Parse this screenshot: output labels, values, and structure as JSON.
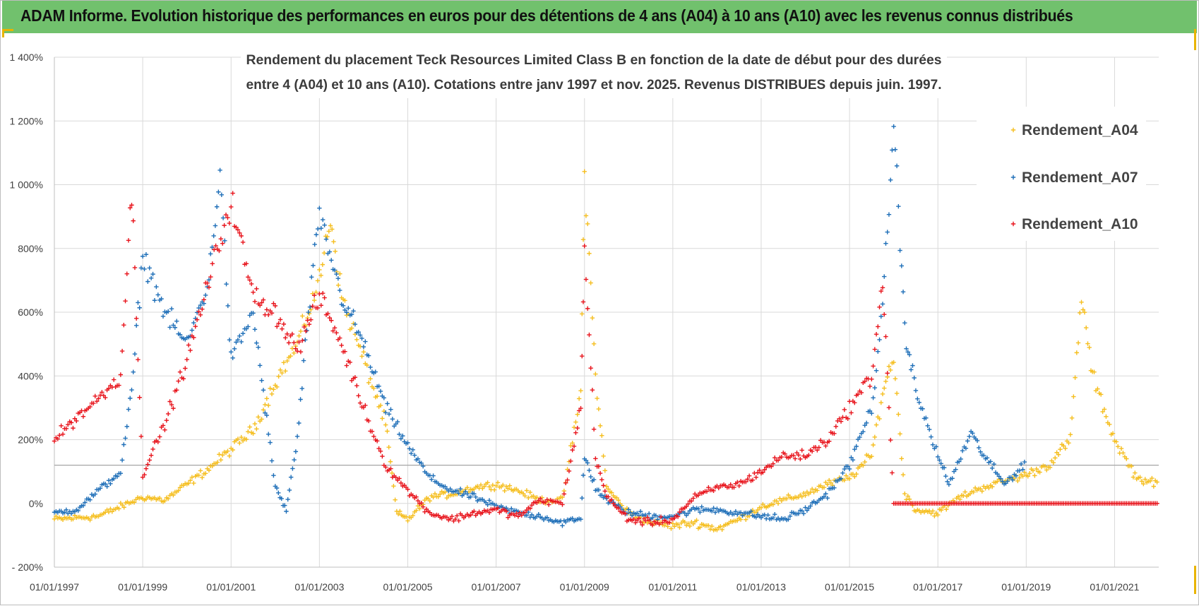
{
  "header": {
    "title": "ADAM Informe. Evolution historique des performances en euros pour des détentions de 4 ans (A04) à 10 ans (A10) avec les revenus connus distribués"
  },
  "colors": {
    "header_bg": "#71c16d",
    "corner": "#e9b400",
    "A04": "#f5be1e",
    "A07": "#1f6fb8",
    "A10": "#e8141c"
  },
  "chart_data": {
    "type": "scatter",
    "title_lines": [
      "Rendement du placement Teck Resources Limited Class B en fonction de la date de début pour des durées",
      "entre 4 (A04) et 10 ans (A10).  Cotations entre janv 1997 et nov. 2025. Revenus DISTRIBUES depuis juin. 1997."
    ],
    "x_axis": {
      "type": "date",
      "range": [
        "1997-01-01",
        "2022-01-01"
      ],
      "tick_labels": [
        "01/01/1997",
        "01/01/1999",
        "01/01/2001",
        "01/01/2003",
        "01/01/2005",
        "01/01/2007",
        "01/01/2009",
        "01/01/2011",
        "01/01/2013",
        "01/01/2015",
        "01/01/2017",
        "01/01/2019",
        "01/01/2021"
      ]
    },
    "y_axis": {
      "range": [
        -200,
        1400
      ],
      "unit": "%",
      "tick_labels": [
        "- 200%",
        "0%",
        "200%",
        "400%",
        "600%",
        "800%",
        "1 000%",
        "1 200%",
        "1 400%"
      ]
    },
    "grid": true,
    "legend_position": "top-right",
    "series": [
      {
        "name": "Rendement_A04",
        "points": [
          [
            "1997-01-01",
            -50
          ],
          [
            "1997-07-01",
            -45
          ],
          [
            "1998-01-01",
            -40
          ],
          [
            "1998-07-01",
            -10
          ],
          [
            "1999-01-01",
            20
          ],
          [
            "1999-07-01",
            10
          ],
          [
            "2000-01-01",
            60
          ],
          [
            "2000-07-01",
            110
          ],
          [
            "2001-01-01",
            170
          ],
          [
            "2001-07-01",
            230
          ],
          [
            "2002-01-01",
            380
          ],
          [
            "2002-07-01",
            500
          ],
          [
            "2003-01-01",
            700
          ],
          [
            "2003-04-01",
            900
          ],
          [
            "2003-07-01",
            650
          ],
          [
            "2004-01-01",
            450
          ],
          [
            "2004-07-01",
            250
          ],
          [
            "2004-10-01",
            -30
          ],
          [
            "2005-01-01",
            -50
          ],
          [
            "2005-07-01",
            20
          ],
          [
            "2006-01-01",
            30
          ],
          [
            "2006-07-01",
            50
          ],
          [
            "2007-01-01",
            60
          ],
          [
            "2007-07-01",
            40
          ],
          [
            "2008-01-01",
            10
          ],
          [
            "2008-07-01",
            10
          ],
          [
            "2008-12-01",
            350
          ],
          [
            "2009-01-01",
            1050
          ],
          [
            "2009-04-01",
            400
          ],
          [
            "2009-07-01",
            50
          ],
          [
            "2010-01-01",
            -30
          ],
          [
            "2010-07-01",
            -60
          ],
          [
            "2011-01-01",
            -70
          ],
          [
            "2011-07-01",
            -60
          ],
          [
            "2012-01-01",
            -80
          ],
          [
            "2012-07-01",
            -50
          ],
          [
            "2013-01-01",
            -10
          ],
          [
            "2013-07-01",
            10
          ],
          [
            "2014-01-01",
            30
          ],
          [
            "2014-07-01",
            60
          ],
          [
            "2015-01-01",
            80
          ],
          [
            "2015-07-01",
            150
          ],
          [
            "2015-10-01",
            350
          ],
          [
            "2016-01-01",
            460
          ],
          [
            "2016-04-01",
            30
          ],
          [
            "2016-07-01",
            -20
          ],
          [
            "2017-01-01",
            -30
          ],
          [
            "2017-07-01",
            20
          ],
          [
            "2018-01-01",
            50
          ],
          [
            "2018-07-01",
            70
          ],
          [
            "2019-01-01",
            90
          ],
          [
            "2019-07-01",
            120
          ],
          [
            "2020-01-01",
            200
          ],
          [
            "2020-04-01",
            650
          ],
          [
            "2020-07-01",
            400
          ],
          [
            "2021-01-01",
            200
          ],
          [
            "2021-07-01",
            80
          ],
          [
            "2022-01-01",
            60
          ]
        ]
      },
      {
        "name": "Rendement_A07",
        "points": [
          [
            "1997-01-01",
            -30
          ],
          [
            "1997-07-01",
            -20
          ],
          [
            "1998-01-01",
            40
          ],
          [
            "1998-07-01",
            100
          ],
          [
            "1998-10-01",
            350
          ],
          [
            "1999-01-01",
            780
          ],
          [
            "1999-07-01",
            600
          ],
          [
            "2000-01-01",
            500
          ],
          [
            "2000-07-01",
            700
          ],
          [
            "2000-10-01",
            1050
          ],
          [
            "2001-01-01",
            450
          ],
          [
            "2001-07-01",
            600
          ],
          [
            "2002-01-01",
            50
          ],
          [
            "2002-04-01",
            -20
          ],
          [
            "2002-07-01",
            200
          ],
          [
            "2002-10-01",
            600
          ],
          [
            "2003-01-01",
            900
          ],
          [
            "2003-07-01",
            650
          ],
          [
            "2004-01-01",
            500
          ],
          [
            "2004-07-01",
            300
          ],
          [
            "2005-01-01",
            180
          ],
          [
            "2005-07-01",
            80
          ],
          [
            "2006-01-01",
            40
          ],
          [
            "2006-07-01",
            20
          ],
          [
            "2007-01-01",
            -10
          ],
          [
            "2007-07-01",
            -30
          ],
          [
            "2008-01-01",
            -40
          ],
          [
            "2008-07-01",
            -60
          ],
          [
            "2008-12-01",
            -50
          ],
          [
            "2009-01-01",
            150
          ],
          [
            "2009-04-01",
            50
          ],
          [
            "2009-07-01",
            10
          ],
          [
            "2010-01-01",
            -30
          ],
          [
            "2010-07-01",
            -40
          ],
          [
            "2011-01-01",
            -40
          ],
          [
            "2011-07-01",
            -20
          ],
          [
            "2012-01-01",
            -20
          ],
          [
            "2012-07-01",
            -30
          ],
          [
            "2013-01-01",
            -40
          ],
          [
            "2013-07-01",
            -50
          ],
          [
            "2014-01-01",
            -20
          ],
          [
            "2014-07-01",
            30
          ],
          [
            "2015-01-01",
            120
          ],
          [
            "2015-07-01",
            300
          ],
          [
            "2015-10-01",
            600
          ],
          [
            "2016-01-01",
            1200
          ],
          [
            "2016-04-01",
            550
          ],
          [
            "2016-07-01",
            350
          ],
          [
            "2017-01-01",
            150
          ],
          [
            "2017-04-01",
            60
          ],
          [
            "2017-10-01",
            220
          ],
          [
            "2018-01-01",
            160
          ],
          [
            "2018-07-01",
            60
          ],
          [
            "2019-01-01",
            130
          ]
        ]
      },
      {
        "name": "Rendement_A10",
        "points": [
          [
            "1997-01-01",
            200
          ],
          [
            "1997-07-01",
            270
          ],
          [
            "1998-01-01",
            330
          ],
          [
            "1998-07-01",
            400
          ],
          [
            "1998-10-01",
            980
          ],
          [
            "1999-01-01",
            90
          ],
          [
            "1999-07-01",
            250
          ],
          [
            "2000-01-01",
            450
          ],
          [
            "2000-07-01",
            700
          ],
          [
            "2001-01-01",
            950
          ],
          [
            "2001-07-01",
            650
          ],
          [
            "2002-01-01",
            600
          ],
          [
            "2002-07-01",
            480
          ],
          [
            "2003-01-01",
            650
          ],
          [
            "2003-07-01",
            500
          ],
          [
            "2004-01-01",
            300
          ],
          [
            "2004-07-01",
            120
          ],
          [
            "2005-01-01",
            40
          ],
          [
            "2005-07-01",
            -30
          ],
          [
            "2006-01-01",
            -50
          ],
          [
            "2006-07-01",
            -30
          ],
          [
            "2007-01-01",
            -20
          ],
          [
            "2007-07-01",
            -40
          ],
          [
            "2008-01-01",
            10
          ],
          [
            "2008-07-01",
            0
          ],
          [
            "2008-12-01",
            300
          ],
          [
            "2009-01-01",
            800
          ],
          [
            "2009-04-01",
            150
          ],
          [
            "2009-07-01",
            20
          ],
          [
            "2010-01-01",
            -50
          ],
          [
            "2010-07-01",
            -60
          ],
          [
            "2011-01-01",
            -50
          ],
          [
            "2011-07-01",
            20
          ],
          [
            "2012-01-01",
            50
          ],
          [
            "2012-07-01",
            60
          ],
          [
            "2013-01-01",
            100
          ],
          [
            "2013-07-01",
            150
          ],
          [
            "2014-01-01",
            150
          ],
          [
            "2014-07-01",
            200
          ],
          [
            "2015-01-01",
            300
          ],
          [
            "2015-07-01",
            400
          ],
          [
            "2015-10-01",
            700
          ],
          [
            "2016-01-01",
            0
          ],
          [
            "2017-01-01",
            0
          ],
          [
            "2018-01-01",
            0
          ],
          [
            "2019-01-01",
            0
          ],
          [
            "2020-01-01",
            0
          ],
          [
            "2021-01-01",
            0
          ],
          [
            "2022-01-01",
            0
          ]
        ]
      }
    ]
  }
}
